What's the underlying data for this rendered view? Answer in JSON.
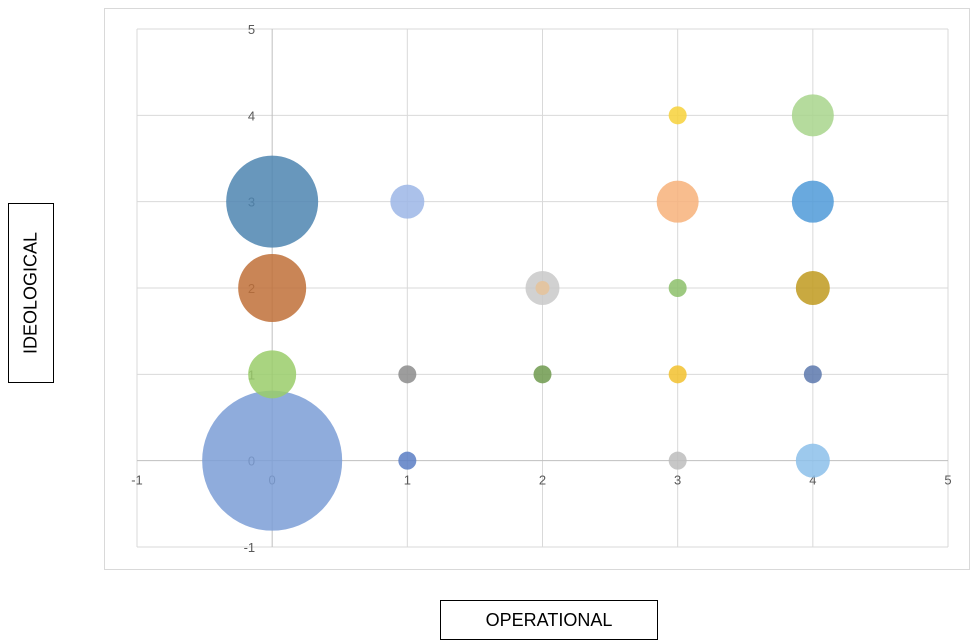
{
  "chart_data": {
    "type": "bubble",
    "xlabel": "OPERATIONAL",
    "ylabel": "IDEOLOGICAL",
    "xlim": [
      -1,
      5
    ],
    "ylim": [
      -1,
      5
    ],
    "x_ticks": [
      "-1",
      "0",
      "1",
      "2",
      "3",
      "4",
      "5"
    ],
    "y_ticks": [
      "-1",
      "0",
      "1",
      "2",
      "3",
      "4",
      "5"
    ],
    "grid": true,
    "points": [
      {
        "x": 0,
        "y": 0,
        "r": 70,
        "color": "#7b9ed6"
      },
      {
        "x": 0,
        "y": 1,
        "r": 24,
        "color": "#9acc6a"
      },
      {
        "x": 0,
        "y": 2,
        "r": 34,
        "color": "#c07038"
      },
      {
        "x": 0,
        "y": 3,
        "r": 46,
        "color": "#4e85b0"
      },
      {
        "x": 1,
        "y": 0,
        "r": 9,
        "color": "#5a7ec4"
      },
      {
        "x": 1,
        "y": 1,
        "r": 9,
        "color": "#8c8c8c"
      },
      {
        "x": 1,
        "y": 3,
        "r": 17,
        "color": "#9cb6e6"
      },
      {
        "x": 2,
        "y": 1,
        "r": 9,
        "color": "#6e9a4e"
      },
      {
        "x": 2,
        "y": 2,
        "r": 17,
        "color": "#c9c9c9"
      },
      {
        "x": 2,
        "y": 2,
        "r": 7,
        "color": "#e6c39a"
      },
      {
        "x": 3,
        "y": 0,
        "r": 9,
        "color": "#bdbdbd"
      },
      {
        "x": 3,
        "y": 1,
        "r": 9,
        "color": "#f2c12e"
      },
      {
        "x": 3,
        "y": 2,
        "r": 9,
        "color": "#8cbf6a"
      },
      {
        "x": 3,
        "y": 3,
        "r": 21,
        "color": "#f7b27a"
      },
      {
        "x": 3,
        "y": 4,
        "r": 9,
        "color": "#f7d13a"
      },
      {
        "x": 4,
        "y": 0,
        "r": 17,
        "color": "#8cc0ea"
      },
      {
        "x": 4,
        "y": 1,
        "r": 9,
        "color": "#5c78ad"
      },
      {
        "x": 4,
        "y": 2,
        "r": 17,
        "color": "#bf9a1e"
      },
      {
        "x": 4,
        "y": 3,
        "r": 21,
        "color": "#4f9ad8"
      },
      {
        "x": 4,
        "y": 4,
        "r": 21,
        "color": "#a8d58c"
      }
    ]
  }
}
